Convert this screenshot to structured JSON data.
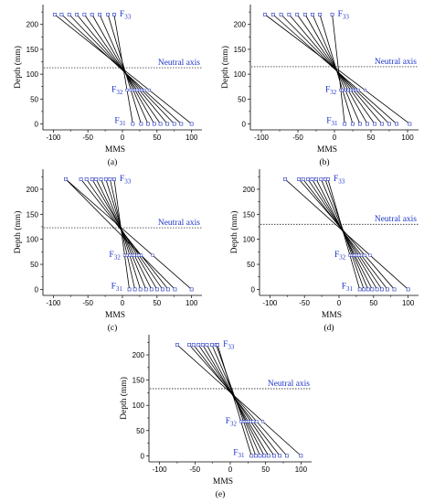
{
  "figure_labels": [
    "(a)",
    "(b)",
    "(c)",
    "(d)",
    "(e)"
  ],
  "chart_data": [
    {
      "id": "a",
      "type": "line",
      "panel_label": "(a)",
      "xlabel": "MMS",
      "ylabel": "Depth (mm)",
      "xlim": [
        -115,
        115
      ],
      "ylim": [
        -12,
        240
      ],
      "xticks": [
        -100,
        -50,
        0,
        50,
        100
      ],
      "yticks": [
        0,
        50,
        100,
        150,
        200
      ],
      "neutral_axis": {
        "y": 113,
        "label": "Neutral axis"
      },
      "bottom_depth": 0,
      "top_depth": 220,
      "bottom_x": [
        15,
        27,
        37,
        46,
        55,
        65,
        75,
        85,
        100
      ],
      "top_x": [
        -98,
        -88,
        -77,
        -66,
        -55,
        -44,
        -33,
        -21,
        -12
      ],
      "labels": {
        "top": {
          "base": "F",
          "sub": "33"
        },
        "mid": {
          "base": "F",
          "sub": "32"
        },
        "bottom": {
          "base": "F",
          "sub": "31"
        }
      }
    },
    {
      "id": "b",
      "type": "line",
      "panel_label": "(b)",
      "xlabel": "MMS",
      "ylabel": "Depth (mm)",
      "xlim": [
        -115,
        115
      ],
      "ylim": [
        -12,
        240
      ],
      "xticks": [
        -100,
        -50,
        0,
        50,
        100
      ],
      "yticks": [
        0,
        50,
        100,
        150,
        200
      ],
      "neutral_axis": {
        "y": 115,
        "label": "Neutral axis"
      },
      "bottom_depth": 0,
      "top_depth": 220,
      "bottom_x": [
        14,
        25,
        35,
        45,
        55,
        65,
        75,
        85,
        103
      ],
      "top_x": [
        -95,
        -84,
        -73,
        -62,
        -51,
        -40,
        -30,
        -20,
        -3
      ],
      "labels": {
        "top": {
          "base": "F",
          "sub": "33"
        },
        "mid": {
          "base": "F",
          "sub": "32"
        },
        "bottom": {
          "base": "F",
          "sub": "31"
        }
      }
    },
    {
      "id": "c",
      "type": "line",
      "panel_label": "(c)",
      "xlabel": "MMS",
      "ylabel": "Depth (mm)",
      "xlim": [
        -115,
        115
      ],
      "ylim": [
        -12,
        240
      ],
      "xticks": [
        -100,
        -50,
        0,
        50,
        100
      ],
      "yticks": [
        0,
        50,
        100,
        150,
        200
      ],
      "neutral_axis": {
        "y": 123,
        "label": "Neutral axis"
      },
      "bottom_depth": 0,
      "top_depth": 220,
      "bottom_x": [
        10,
        18,
        26,
        34,
        42,
        50,
        58,
        66,
        76,
        100
      ],
      "top_x": [
        -82,
        -60,
        -52,
        -44,
        -38,
        -31,
        -24,
        -18,
        -12
      ],
      "labels": {
        "top": {
          "base": "F",
          "sub": "33"
        },
        "mid": {
          "base": "F",
          "sub": "32"
        },
        "bottom": {
          "base": "F",
          "sub": "31"
        }
      }
    },
    {
      "id": "d",
      "type": "line",
      "panel_label": "(d)",
      "xlabel": "MMS",
      "ylabel": "Depth (mm)",
      "xlim": [
        -115,
        115
      ],
      "ylim": [
        -12,
        240
      ],
      "xticks": [
        -100,
        -50,
        0,
        50,
        100
      ],
      "yticks": [
        0,
        50,
        100,
        150,
        200
      ],
      "neutral_axis": {
        "y": 130,
        "label": "Neutral axis"
      },
      "bottom_depth": 0,
      "top_depth": 220,
      "bottom_x": [
        30,
        36,
        42,
        48,
        55,
        62,
        70,
        80,
        100
      ],
      "top_x": [
        -78,
        -58,
        -52,
        -45,
        -39,
        -33,
        -26,
        -20,
        -16
      ],
      "labels": {
        "top": {
          "base": "F",
          "sub": "33"
        },
        "mid": {
          "base": "F",
          "sub": "32"
        },
        "bottom": {
          "base": "F",
          "sub": "31"
        }
      }
    },
    {
      "id": "e",
      "type": "line",
      "panel_label": "(e)",
      "xlabel": "MMS",
      "ylabel": "Depth (mm)",
      "xlim": [
        -115,
        115
      ],
      "ylim": [
        -12,
        240
      ],
      "xticks": [
        -100,
        -50,
        0,
        50,
        100
      ],
      "yticks": [
        0,
        50,
        100,
        150,
        200
      ],
      "neutral_axis": {
        "y": 133,
        "label": "Neutral axis"
      },
      "bottom_depth": 0,
      "top_depth": 220,
      "bottom_x": [
        30,
        36,
        42,
        48,
        54,
        62,
        70,
        80,
        100
      ],
      "top_x": [
        -75,
        -58,
        -52,
        -45,
        -39,
        -33,
        -26,
        -20,
        -18
      ],
      "labels": {
        "top": {
          "base": "F",
          "sub": "33"
        },
        "mid": {
          "base": "F",
          "sub": "32"
        },
        "bottom": {
          "base": "F",
          "sub": "31"
        }
      }
    }
  ],
  "colors": {
    "line": "#000000",
    "marker": "#2233bb",
    "label": "#1f35c8",
    "neutral": "#000000"
  }
}
